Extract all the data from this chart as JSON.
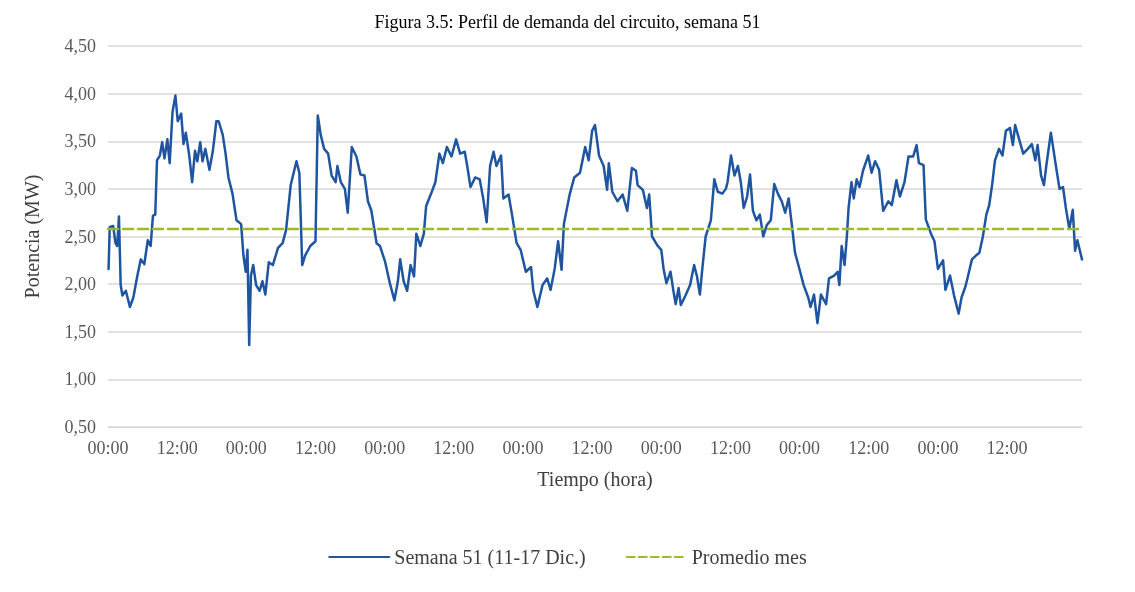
{
  "chart_data": {
    "type": "line",
    "title": "Figura 3.5: Perfil de demanda del circuito, semana 51",
    "xlabel": "Tiempo (hora)",
    "ylabel": "Potencia (MW)",
    "xlim": [
      "--12-11T00:00",
      "--12-18T01:00"
    ],
    "xticks": [
      {
        "value": "--12-11T00:00",
        "label": "00:00"
      },
      {
        "value": "--12-11T12:00",
        "label": "12:00"
      },
      {
        "value": "--12-12T00:00",
        "label": "00:00"
      },
      {
        "value": "--12-12T12:00",
        "label": "12:00"
      },
      {
        "value": "--12-13T00:00",
        "label": "00:00"
      },
      {
        "value": "--12-13T12:00",
        "label": "12:00"
      },
      {
        "value": "--12-14T00:00",
        "label": "00:00"
      },
      {
        "value": "--12-14T12:00",
        "label": "12:00"
      },
      {
        "value": "--12-15T00:00",
        "label": "00:00"
      },
      {
        "value": "--12-15T12:00",
        "label": "12:00"
      },
      {
        "value": "--12-16T00:00",
        "label": "00:00"
      },
      {
        "value": "--12-16T12:00",
        "label": "12:00"
      },
      {
        "value": "--12-17T00:00",
        "label": "00:00"
      },
      {
        "value": "--12-17T12:00",
        "label": "12:00"
      }
    ],
    "ylim": [
      0.5,
      4.5
    ],
    "yticks": [
      {
        "value": 0.5,
        "label": "0,50"
      },
      {
        "value": 1,
        "label": "1,00"
      },
      {
        "value": 1.5,
        "label": "1,50"
      },
      {
        "value": 2,
        "label": "2,00"
      },
      {
        "value": 2.5,
        "label": "2,50"
      },
      {
        "value": 3,
        "label": "3,00"
      },
      {
        "value": 3.5,
        "label": "3,50"
      },
      {
        "value": 4,
        "label": "4,00"
      },
      {
        "value": 4.5,
        "label": "4,50"
      }
    ],
    "grid": "y",
    "legend": "bottom",
    "marker": "none",
    "series": [
      {
        "name": "Semana 51 (11-17 Dic.)",
        "color": "#1f55a0",
        "line_style": "solid",
        "x": [
          "--12-11T00:06",
          "--12-11T00:18",
          "--12-11T00:54",
          "--12-11T01:18",
          "--12-11T01:36",
          "--12-11T01:54",
          "--12-11T02:12",
          "--12-11T02:30",
          "--12-11T03:06",
          "--12-11T03:48",
          "--12-11T04:24",
          "--12-11T05:06",
          "--12-11T05:42",
          "--12-11T06:18",
          "--12-11T06:54",
          "--12-11T07:24",
          "--12-11T07:48",
          "--12-11T08:12",
          "--12-11T08:30",
          "--12-11T09:00",
          "--12-11T09:24",
          "--12-11T09:48",
          "--12-11T10:18",
          "--12-11T10:42",
          "--12-11T11:12",
          "--12-11T11:42",
          "--12-11T12:06",
          "--12-11T12:42",
          "--12-11T13:06",
          "--12-11T13:30",
          "--12-11T14:06",
          "--12-11T14:36",
          "--12-11T15:06",
          "--12-11T15:30",
          "--12-11T16:00",
          "--12-11T16:24",
          "--12-11T16:54",
          "--12-11T17:36",
          "--12-11T18:12",
          "--12-11T18:48",
          "--12-11T19:12",
          "--12-11T19:54",
          "--12-11T20:24",
          "--12-11T20:54",
          "--12-11T21:36",
          "--12-11T22:18",
          "--12-11T23:06",
          "--12-11T23:30",
          "--12-11T23:54",
          "--12-12T00:12",
          "--12-12T00:30",
          "--12-12T00:48",
          "--12-12T01:12",
          "--12-12T01:42",
          "--12-12T02:18",
          "--12-12T02:48",
          "--12-12T03:18",
          "--12-12T03:54",
          "--12-12T04:36",
          "--12-12T05:30",
          "--12-12T06:18",
          "--12-12T06:54",
          "--12-12T07:42",
          "--12-12T08:42",
          "--12-12T09:12",
          "--12-12T09:42",
          "--12-12T10:12",
          "--12-12T11:06",
          "--12-12T12:00",
          "--12-12T12:24",
          "--12-12T12:54",
          "--12-12T13:30",
          "--12-12T14:12",
          "--12-12T14:48",
          "--12-12T15:30",
          "--12-12T15:48",
          "--12-12T16:24",
          "--12-12T17:06",
          "--12-12T17:36",
          "--12-12T18:18",
          "--12-12T19:06",
          "--12-12T19:48",
          "--12-12T20:30",
          "--12-12T21:06",
          "--12-12T21:42",
          "--12-12T22:36",
          "--12-12T23:12",
          "--12-13T00:06",
          "--12-13T00:54",
          "--12-13T01:42",
          "--12-13T02:18",
          "--12-13T02:42",
          "--12-13T03:18",
          "--12-13T03:54",
          "--12-13T04:30",
          "--12-13T05:06",
          "--12-13T05:30",
          "--12-13T06:12",
          "--12-13T06:48",
          "--12-13T07:12",
          "--12-13T08:00",
          "--12-13T08:48",
          "--12-13T09:30",
          "--12-13T10:06",
          "--12-13T10:48",
          "--12-13T11:36",
          "--12-13T12:24",
          "--12-13T13:06",
          "--12-13T13:54",
          "--12-13T14:18",
          "--12-13T14:54",
          "--12-13T15:42",
          "--12-13T16:30",
          "--12-13T17:06",
          "--12-13T17:42",
          "--12-13T18:18",
          "--12-13T18:54",
          "--12-13T19:24",
          "--12-13T20:12",
          "--12-13T20:36",
          "--12-13T21:30",
          "--12-13T22:06",
          "--12-13T22:54",
          "--12-13T23:36",
          "--12-14T00:30",
          "--12-14T01:24",
          "--12-14T01:48",
          "--12-14T02:30",
          "--12-14T03:24",
          "--12-14T04:12",
          "--12-14T04:48",
          "--12-14T05:30",
          "--12-14T06:06",
          "--12-14T06:42",
          "--12-14T07:06",
          "--12-14T08:06",
          "--12-14T08:54",
          "--12-14T09:54",
          "--12-14T10:48",
          "--12-14T11:24",
          "--12-14T12:00",
          "--12-14T12:30",
          "--12-14T13:12",
          "--12-14T14:00",
          "--12-14T14:36",
          "--12-14T14:54",
          "--12-14T15:30",
          "--12-14T16:24",
          "--12-14T17:18",
          "--12-14T18:06",
          "--12-14T18:54",
          "--12-14T19:36",
          "--12-14T19:54",
          "--12-14T20:48",
          "--12-14T21:30",
          "--12-14T21:54",
          "--12-14T22:24",
          "--12-14T23:24",
          "--12-15T00:00",
          "--12-15T00:24",
          "--12-15T00:54",
          "--12-15T01:36",
          "--12-15T02:06",
          "--12-15T02:30",
          "--12-15T03:00",
          "--12-15T03:24",
          "--12-15T04:12",
          "--12-15T05:00",
          "--12-15T05:42",
          "--12-15T06:12",
          "--12-15T06:42",
          "--12-15T07:06",
          "--12-15T07:42",
          "--12-15T08:36",
          "--12-15T09:12",
          "--12-15T09:48",
          "--12-15T10:36",
          "--12-15T11:12",
          "--12-15T11:30",
          "--12-15T12:06",
          "--12-15T12:42",
          "--12-15T13:18",
          "--12-15T13:48",
          "--12-15T14:18",
          "--12-15T14:54",
          "--12-15T15:24",
          "--12-15T15:54",
          "--12-15T16:30",
          "--12-15T17:06",
          "--12-15T17:42",
          "--12-15T18:18",
          "--12-15T19:00",
          "--12-15T19:36",
          "--12-15T20:18",
          "--12-15T20:54",
          "--12-15T21:30",
          "--12-15T22:06",
          "--12-15T22:42",
          "--12-15T23:12",
          "--12-16T00:06",
          "--12-16T00:42",
          "--12-16T01:30",
          "--12-16T01:54",
          "--12-16T02:30",
          "--12-16T03:06",
          "--12-16T03:42",
          "--12-16T04:36",
          "--12-16T05:06",
          "--12-16T06:00",
          "--12-16T06:36",
          "--12-16T06:54",
          "--12-16T07:18",
          "--12-16T07:48",
          "--12-16T08:12",
          "--12-16T08:30",
          "--12-16T09:00",
          "--12-16T09:24",
          "--12-16T09:54",
          "--12-16T10:24",
          "--12-16T11:00",
          "--12-16T11:54",
          "--12-16T12:30",
          "--12-16T13:06",
          "--12-16T13:48",
          "--12-16T14:30",
          "--12-16T15:24",
          "--12-16T16:00",
          "--12-16T16:48",
          "--12-16T17:24",
          "--12-16T18:12",
          "--12-16T18:54",
          "--12-16T19:42",
          "--12-16T20:18",
          "--12-16T20:42",
          "--12-16T21:30",
          "--12-16T21:54",
          "--12-16T22:48",
          "--12-16T23:24",
          "--12-17T00:00",
          "--12-17T00:54",
          "--12-17T01:18",
          "--12-17T02:06",
          "--12-17T02:48",
          "--12-17T03:36",
          "--12-17T04:06",
          "--12-17T04:48",
          "--12-17T05:24",
          "--12-17T05:54",
          "--12-17T06:36",
          "--12-17T07:12",
          "--12-17T07:48",
          "--12-17T08:24",
          "--12-17T08:54",
          "--12-17T09:24",
          "--12-17T09:54",
          "--12-17T10:36",
          "--12-17T11:12",
          "--12-17T11:48",
          "--12-17T12:30",
          "--12-17T13:00",
          "--12-17T13:24",
          "--12-17T14:00",
          "--12-17T14:48",
          "--12-17T15:36",
          "--12-17T16:18",
          "--12-17T16:54",
          "--12-17T17:18",
          "--12-17T17:54",
          "--12-17T18:24",
          "--12-17T18:48",
          "--12-17T19:36",
          "--12-17T20:24",
          "--12-17T21:06",
          "--12-17T21:42",
          "--12-17T22:12",
          "--12-17T22:48",
          "--12-17T23:24",
          "--12-17T23:48",
          "--12-18T00:12",
          "--12-18T01:00"
        ],
        "values": [
          2.16,
          2.6,
          2.61,
          2.43,
          2.4,
          2.71,
          1.99,
          1.88,
          1.93,
          1.76,
          1.86,
          2.09,
          2.26,
          2.21,
          2.46,
          2.4,
          2.72,
          2.73,
          3.3,
          3.35,
          3.49,
          3.32,
          3.52,
          3.27,
          3.81,
          3.98,
          3.71,
          3.79,
          3.47,
          3.59,
          3.35,
          3.07,
          3.4,
          3.29,
          3.49,
          3.29,
          3.42,
          3.2,
          3.4,
          3.71,
          3.71,
          3.57,
          3.37,
          3.12,
          2.95,
          2.67,
          2.63,
          2.3,
          2.13,
          2.36,
          1.36,
          2.09,
          2.2,
          1.99,
          1.93,
          2.03,
          1.89,
          2.23,
          2.2,
          2.38,
          2.43,
          2.57,
          3.04,
          3.29,
          3.17,
          2.2,
          2.3,
          2.4,
          2.45,
          3.77,
          3.57,
          3.42,
          3.37,
          3.14,
          3.07,
          3.24,
          3.07,
          3.0,
          2.75,
          3.44,
          3.34,
          3.15,
          3.14,
          2.87,
          2.77,
          2.43,
          2.4,
          2.23,
          2.01,
          1.83,
          2.03,
          2.26,
          2.03,
          1.93,
          2.2,
          2.08,
          2.53,
          2.4,
          2.53,
          2.82,
          2.94,
          3.07,
          3.37,
          3.27,
          3.44,
          3.34,
          3.52,
          3.37,
          3.39,
          3.25,
          3.02,
          3.12,
          3.1,
          2.9,
          2.65,
          3.24,
          3.39,
          3.24,
          3.35,
          2.9,
          2.94,
          2.73,
          2.43,
          2.36,
          2.13,
          2.18,
          1.93,
          1.76,
          1.99,
          2.06,
          1.94,
          2.16,
          2.45,
          2.15,
          2.63,
          2.94,
          3.12,
          3.17,
          3.44,
          3.3,
          3.61,
          3.67,
          3.35,
          3.24,
          2.99,
          3.27,
          2.97,
          2.87,
          2.94,
          2.77,
          3.22,
          3.19,
          3.04,
          2.99,
          2.8,
          2.94,
          2.5,
          2.4,
          2.36,
          2.16,
          2.01,
          2.13,
          1.93,
          1.79,
          1.96,
          1.78,
          1.88,
          1.99,
          2.2,
          2.08,
          1.89,
          2.15,
          2.5,
          2.67,
          3.1,
          2.97,
          2.95,
          3.0,
          3.07,
          3.35,
          3.14,
          3.24,
          3.07,
          2.8,
          2.92,
          3.15,
          2.77,
          2.67,
          2.73,
          2.5,
          2.62,
          2.67,
          3.05,
          2.94,
          2.87,
          2.75,
          2.9,
          2.6,
          2.33,
          2.13,
          1.99,
          1.86,
          1.76,
          1.89,
          1.59,
          1.89,
          1.79,
          2.06,
          2.09,
          2.13,
          1.99,
          2.4,
          2.2,
          2.5,
          2.8,
          3.07,
          2.9,
          3.1,
          3.02,
          3.19,
          3.35,
          3.17,
          3.29,
          3.2,
          2.77,
          2.87,
          2.83,
          3.09,
          2.92,
          3.07,
          3.34,
          3.34,
          3.46,
          3.27,
          3.25,
          2.68,
          2.53,
          2.45,
          2.16,
          2.25,
          1.94,
          2.09,
          1.88,
          1.69,
          1.86,
          1.98,
          2.13,
          2.26,
          2.3,
          2.33,
          2.5,
          2.73,
          2.83,
          3.04,
          3.3,
          3.42,
          3.35,
          3.61,
          3.64,
          3.46,
          3.67,
          3.54,
          3.37,
          3.42,
          3.47,
          3.3,
          3.46,
          3.14,
          3.04,
          3.24,
          3.59,
          3.27,
          3.0,
          3.02,
          2.8,
          2.58,
          2.78,
          2.35,
          2.46,
          2.26
        ]
      },
      {
        "name": "Promedio mes",
        "color": "#9bbb29",
        "line_style": "dashed",
        "x": [
          "--12-11T00:00",
          "--12-18T01:00"
        ],
        "values": [
          2.58,
          2.58
        ]
      }
    ]
  }
}
